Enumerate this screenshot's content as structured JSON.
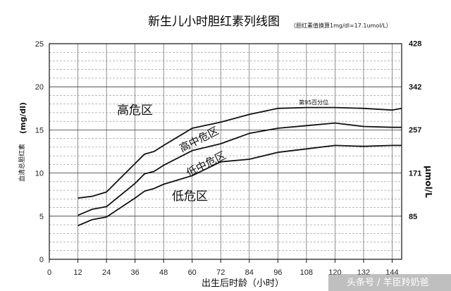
{
  "chart_data": {
    "type": "line",
    "title": "新生儿小时胆红素列线图",
    "subtitle": "（胆红素值换算1mg/dl=17.1umol/L）",
    "xlabel": "出生后时龄（小时）",
    "ylabel_left": "血清总胆红素",
    "ylabel_left_unit": "(mg/dl)",
    "ylabel_right": "μmol/L",
    "x_ticks": [
      0,
      12,
      24,
      36,
      48,
      60,
      72,
      84,
      96,
      108,
      120,
      132,
      144
    ],
    "xlim": [
      0,
      148
    ],
    "y_ticks": [
      0,
      5,
      10,
      15,
      20,
      25
    ],
    "ylim": [
      0,
      25
    ],
    "right_ticks": [
      "85",
      "171",
      "257",
      "342",
      "428"
    ],
    "grid": true,
    "series": [
      {
        "x": [
          12,
          18,
          24,
          36,
          40,
          44,
          48,
          60,
          72,
          84,
          96,
          108,
          120,
          132,
          144,
          148
        ],
        "y": [
          7.1,
          7.3,
          7.8,
          11.1,
          12.2,
          12.5,
          13.2,
          15.2,
          15.9,
          16.8,
          17.5,
          17.6,
          17.6,
          17.5,
          17.3,
          17.5
        ]
      },
      {
        "x": [
          12,
          18,
          24,
          36,
          40,
          44,
          48,
          60,
          72,
          84,
          96,
          108,
          120,
          132,
          144,
          148
        ],
        "y": [
          5.1,
          5.8,
          6.1,
          8.8,
          9.9,
          10.2,
          10.9,
          12.6,
          13.4,
          14.6,
          15.2,
          15.5,
          15.8,
          15.4,
          15.3,
          15.3
        ]
      },
      {
        "x": [
          12,
          18,
          24,
          36,
          40,
          44,
          48,
          60,
          72,
          84,
          96,
          108,
          120,
          132,
          144,
          148
        ],
        "y": [
          3.9,
          4.6,
          4.9,
          7.1,
          7.9,
          8.2,
          8.7,
          9.7,
          11.3,
          11.6,
          12.4,
          12.8,
          13.2,
          13.1,
          13.2,
          13.2
        ]
      }
    ],
    "annotations": {
      "high_risk": "高危区",
      "high_intermediate": "高中危区",
      "low_intermediate": "低中危区",
      "low_risk": "低危区",
      "percentile_95": "第95百分位"
    }
  },
  "watermark": "头条号 / 羊臣羚奶爸"
}
